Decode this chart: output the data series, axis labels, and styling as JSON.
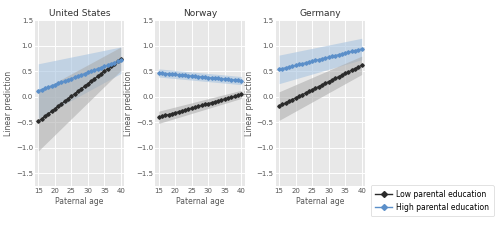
{
  "panels": [
    {
      "title": "United States",
      "xlim": [
        14,
        41
      ],
      "ylim": [
        -1.75,
        1.35
      ],
      "low_line": {
        "x": [
          15,
          40
        ],
        "y": [
          -0.48,
          0.75
        ]
      },
      "low_ci_upper": {
        "x": [
          15,
          40
        ],
        "y": [
          0.1,
          0.98
        ]
      },
      "low_ci_lower": {
        "x": [
          15,
          40
        ],
        "y": [
          -1.06,
          0.52
        ]
      },
      "high_line": {
        "x": [
          15,
          40
        ],
        "y": [
          0.12,
          0.72
        ]
      },
      "high_ci_upper": {
        "x": [
          15,
          40
        ],
        "y": [
          0.65,
          0.98
        ]
      },
      "high_ci_lower": {
        "x": [
          15,
          40
        ],
        "y": [
          -0.42,
          0.46
        ]
      }
    },
    {
      "title": "Norway",
      "xlim": [
        14,
        41
      ],
      "ylim": [
        -1.75,
        1.35
      ],
      "low_line": {
        "x": [
          15,
          40
        ],
        "y": [
          -0.4,
          0.05
        ]
      },
      "low_ci_upper": {
        "x": [
          15,
          40
        ],
        "y": [
          -0.28,
          0.13
        ]
      },
      "low_ci_lower": {
        "x": [
          15,
          40
        ],
        "y": [
          -0.52,
          -0.03
        ]
      },
      "high_line": {
        "x": [
          15,
          40
        ],
        "y": [
          0.47,
          0.32
        ]
      },
      "high_ci_upper": {
        "x": [
          15,
          40
        ],
        "y": [
          0.55,
          0.4
        ]
      },
      "high_ci_lower": {
        "x": [
          15,
          40
        ],
        "y": [
          0.39,
          0.24
        ]
      }
    },
    {
      "title": "Germany",
      "xlim": [
        14,
        41
      ],
      "ylim": [
        -1.75,
        1.35
      ],
      "low_line": {
        "x": [
          15,
          40
        ],
        "y": [
          -0.18,
          0.62
        ]
      },
      "low_ci_upper": {
        "x": [
          15,
          40
        ],
        "y": [
          0.1,
          0.8
        ]
      },
      "low_ci_lower": {
        "x": [
          15,
          40
        ],
        "y": [
          -0.46,
          0.44
        ]
      },
      "high_line": {
        "x": [
          15,
          40
        ],
        "y": [
          0.54,
          0.94
        ]
      },
      "high_ci_upper": {
        "x": [
          15,
          40
        ],
        "y": [
          0.82,
          1.15
        ]
      },
      "high_ci_lower": {
        "x": [
          15,
          40
        ],
        "y": [
          0.26,
          0.73
        ]
      }
    }
  ],
  "xticks": [
    15,
    20,
    25,
    30,
    35,
    40
  ],
  "yticks": [
    -1.5,
    -1.0,
    -0.5,
    0.0,
    0.5,
    1.0,
    1.5
  ],
  "xlabel": "Paternal age",
  "ylabel": "Linear prediction",
  "low_color": "#2b2b2b",
  "high_color": "#5b8fc9",
  "low_ci_color": "#aaaaaa",
  "high_ci_color": "#a8c4e0",
  "bg_color": "#e8e8e8",
  "grid_color": "#ffffff",
  "legend_low_label": "Low parental education",
  "legend_high_label": "High parental education"
}
